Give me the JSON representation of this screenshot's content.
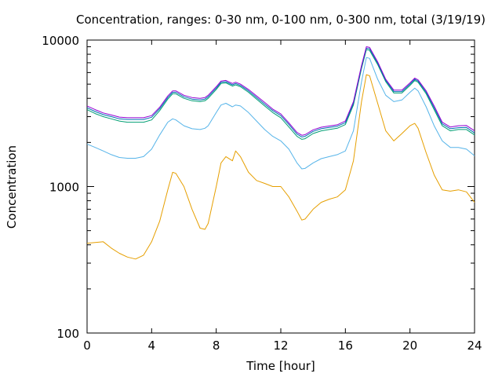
{
  "chart_data": {
    "type": "line",
    "title": "Concentration, ranges: 0-30 nm, 0-100 nm, 0-300 nm, total (3/19/19)",
    "xlabel": "Time [hour]",
    "ylabel": "Concentration",
    "xlim": [
      0,
      24
    ],
    "ylim": [
      100,
      10000
    ],
    "yscale": "log",
    "grid": false,
    "legend": "none",
    "x_ticks": [
      {
        "value": 0,
        "label": "0"
      },
      {
        "value": 4,
        "label": "4"
      },
      {
        "value": 8,
        "label": "8"
      },
      {
        "value": 12,
        "label": "12"
      },
      {
        "value": 16,
        "label": "16"
      },
      {
        "value": 20,
        "label": "20"
      },
      {
        "value": 24,
        "label": "24"
      }
    ],
    "y_ticks": [
      {
        "value": 100,
        "label": "100"
      },
      {
        "value": 1000,
        "label": "1000"
      },
      {
        "value": 10000,
        "label": "10000"
      }
    ],
    "x": [
      0,
      0.5,
      1,
      1.5,
      2,
      2.5,
      3,
      3.5,
      4,
      4.5,
      5,
      5.3,
      5.5,
      6,
      6.5,
      7,
      7.3,
      7.5,
      8,
      8.3,
      8.6,
      9,
      9.2,
      9.5,
      10,
      10.5,
      11,
      11.5,
      12,
      12.5,
      13,
      13.3,
      13.5,
      14,
      14.5,
      15,
      15.5,
      16,
      16.5,
      17,
      17.3,
      17.5,
      18,
      18.5,
      19,
      19.5,
      20,
      20.3,
      20.5,
      21,
      21.5,
      22,
      22.5,
      23,
      23.5,
      24
    ],
    "series": [
      {
        "color": "#e69f00",
        "values": [
          410,
          415,
          420,
          380,
          350,
          330,
          320,
          340,
          420,
          580,
          950,
          1250,
          1230,
          1000,
          700,
          520,
          510,
          560,
          1000,
          1450,
          1600,
          1500,
          1750,
          1600,
          1250,
          1100,
          1050,
          1000,
          1000,
          850,
          680,
          590,
          600,
          700,
          780,
          820,
          850,
          950,
          1500,
          3800,
          5800,
          5700,
          3700,
          2400,
          2050,
          2300,
          2600,
          2700,
          2500,
          1700,
          1200,
          950,
          930,
          950,
          920,
          780
        ]
      },
      {
        "color": "#56b4e9",
        "values": [
          1950,
          1850,
          1750,
          1650,
          1580,
          1560,
          1560,
          1600,
          1800,
          2250,
          2750,
          2900,
          2850,
          2600,
          2480,
          2450,
          2500,
          2600,
          3200,
          3600,
          3700,
          3500,
          3600,
          3550,
          3200,
          2800,
          2450,
          2200,
          2050,
          1800,
          1450,
          1320,
          1330,
          1450,
          1550,
          1600,
          1650,
          1750,
          2400,
          5200,
          7600,
          7500,
          5400,
          4200,
          3800,
          3900,
          4400,
          4700,
          4500,
          3500,
          2600,
          2050,
          1850,
          1850,
          1800,
          1620
        ]
      },
      {
        "color": "#009e73",
        "values": [
          3350,
          3150,
          3000,
          2900,
          2800,
          2750,
          2750,
          2750,
          2850,
          3300,
          3950,
          4300,
          4300,
          4000,
          3850,
          3800,
          3850,
          4000,
          4600,
          5050,
          5100,
          4850,
          4950,
          4800,
          4400,
          3950,
          3550,
          3200,
          2950,
          2550,
          2200,
          2100,
          2120,
          2300,
          2400,
          2450,
          2500,
          2650,
          3600,
          6400,
          8600,
          8500,
          6800,
          5200,
          4350,
          4350,
          4900,
          5300,
          5150,
          4300,
          3350,
          2600,
          2400,
          2450,
          2450,
          2250
        ]
      },
      {
        "color": "#0072b2",
        "values": [
          3450,
          3250,
          3100,
          3000,
          2900,
          2870,
          2870,
          2870,
          2970,
          3400,
          4050,
          4400,
          4400,
          4100,
          3950,
          3900,
          3950,
          4100,
          4700,
          5150,
          5200,
          4950,
          5050,
          4900,
          4500,
          4050,
          3650,
          3300,
          3050,
          2650,
          2280,
          2180,
          2200,
          2380,
          2480,
          2530,
          2580,
          2730,
          3700,
          6550,
          8800,
          8700,
          6950,
          5300,
          4450,
          4450,
          5000,
          5400,
          5250,
          4400,
          3450,
          2680,
          2480,
          2520,
          2530,
          2320
        ]
      },
      {
        "color": "#9400d3",
        "values": [
          3550,
          3350,
          3180,
          3080,
          2980,
          2950,
          2950,
          2950,
          3050,
          3480,
          4150,
          4500,
          4500,
          4200,
          4050,
          4000,
          4050,
          4200,
          4800,
          5250,
          5300,
          5050,
          5150,
          5000,
          4600,
          4150,
          3750,
          3380,
          3130,
          2720,
          2340,
          2240,
          2260,
          2440,
          2540,
          2590,
          2640,
          2800,
          3800,
          6700,
          9000,
          8900,
          7100,
          5400,
          4550,
          4550,
          5100,
          5500,
          5350,
          4500,
          3550,
          2750,
          2550,
          2600,
          2610,
          2400
        ]
      }
    ]
  }
}
